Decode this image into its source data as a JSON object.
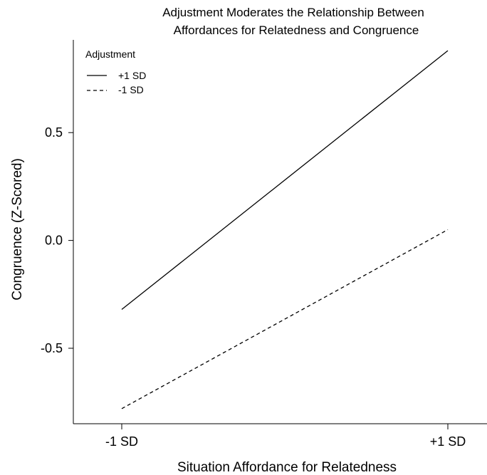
{
  "chart_data": {
    "type": "line",
    "title_lines": [
      "Adjustment Moderates the Relationship Between",
      "Affordances for Relatedness and Congruence"
    ],
    "xlabel": "Situation Affordance for Relatedness",
    "ylabel": "Congruence (Z-Scored)",
    "categories": [
      "-1 SD",
      "+1 SD"
    ],
    "ylim": [
      -0.85,
      0.93
    ],
    "yticks": [
      0.5,
      0.0,
      -0.5
    ],
    "ytick_labels": [
      "0.5",
      "0.0",
      "-0.5"
    ],
    "grid": false,
    "legend": {
      "title": "Adjustment",
      "position": "top-left"
    },
    "series": [
      {
        "name": "+1 SD",
        "values": [
          -0.32,
          0.88
        ],
        "line_style": "solid",
        "color": "#000000"
      },
      {
        "name": "-1 SD",
        "values": [
          -0.78,
          0.05
        ],
        "line_style": "dashed",
        "color": "#000000"
      }
    ]
  }
}
